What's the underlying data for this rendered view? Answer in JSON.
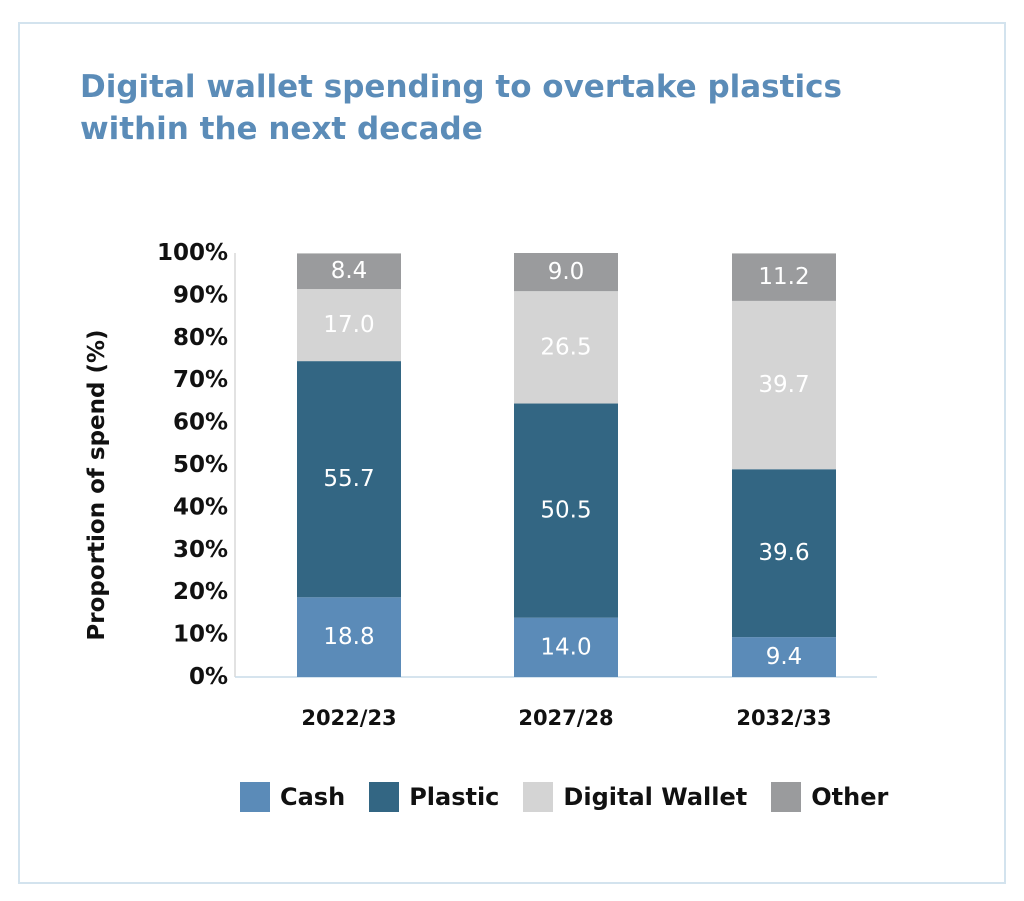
{
  "chart_data": {
    "type": "bar",
    "stacked": true,
    "title": "Digital wallet spending to overtake plastics within the next decade",
    "xlabel": "",
    "ylabel": "Proportion of spend (%)",
    "ylim": [
      0,
      100
    ],
    "yticks": [
      "0%",
      "10%",
      "20%",
      "30%",
      "40%",
      "50%",
      "60%",
      "70%",
      "80%",
      "90%",
      "100%"
    ],
    "categories": [
      "2022/23",
      "2027/28",
      "2032/33"
    ],
    "series": [
      {
        "name": "Cash",
        "color": "#5b8bb8",
        "values": [
          18.8,
          14.0,
          9.4
        ],
        "labels": [
          "18.8",
          "14.0",
          "9.4"
        ]
      },
      {
        "name": "Plastic",
        "color": "#336683",
        "values": [
          55.7,
          50.5,
          39.6
        ],
        "labels": [
          "55.7",
          "50.5",
          "39.6"
        ]
      },
      {
        "name": "Digital Wallet",
        "color": "#d4d4d4",
        "values": [
          17.0,
          26.5,
          39.7
        ],
        "labels": [
          "17.0",
          "26.5",
          "39.7"
        ]
      },
      {
        "name": "Other",
        "color": "#9a9b9d",
        "values": [
          8.4,
          9.0,
          11.2
        ],
        "labels": [
          "8.4",
          "9.0",
          "11.2"
        ]
      }
    ],
    "legend": "bottom",
    "grid": false
  }
}
